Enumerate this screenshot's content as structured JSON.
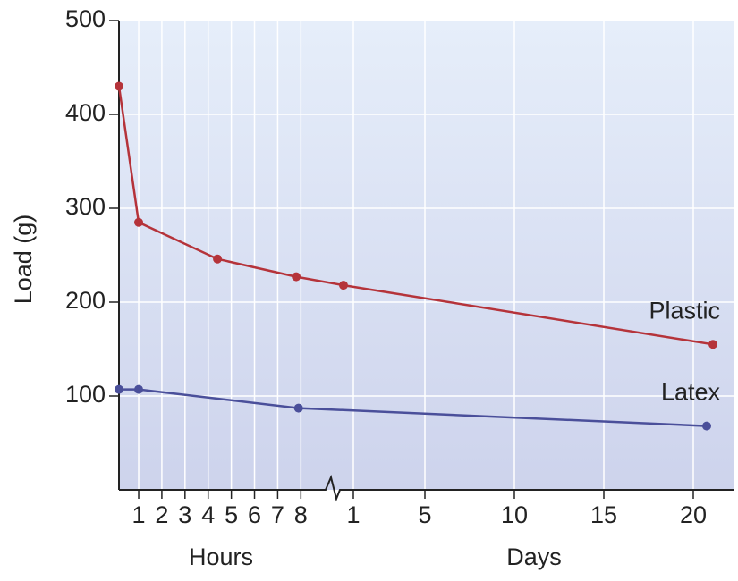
{
  "chart_data": [
    {
      "type": "line",
      "y_label": "Load (g)",
      "x_label": "Hours",
      "ylim": [
        0,
        500
      ],
      "yticks": [
        100,
        200,
        300,
        400,
        500
      ],
      "xlim": [
        0.15,
        9.3
      ],
      "xticks": [
        1,
        2,
        3,
        4,
        5,
        6,
        7,
        8
      ],
      "grid": true,
      "series": [
        {
          "color": "#b5333a",
          "x": [
            0.15,
            1,
            4.4,
            7.8
          ],
          "values": [
            430,
            285,
            246,
            227
          ]
        },
        {
          "color": "#4a4f9a",
          "x": [
            1,
            7.9
          ],
          "values": [
            107,
            87
          ]
        }
      ]
    },
    {
      "type": "line",
      "x_label": "Days",
      "xlim": [
        -0.25,
        22.25
      ],
      "xticks": [
        1,
        5,
        10,
        15,
        20
      ],
      "grid": true,
      "series": [
        {
          "name": "Plastic",
          "color": "#b5333a",
          "x": [
            0.45,
            21.1
          ],
          "values": [
            218,
            155
          ]
        },
        {
          "name": "Latex",
          "color": "#4a4f9a",
          "x": [
            20.75
          ],
          "values": [
            68
          ]
        }
      ]
    }
  ]
}
